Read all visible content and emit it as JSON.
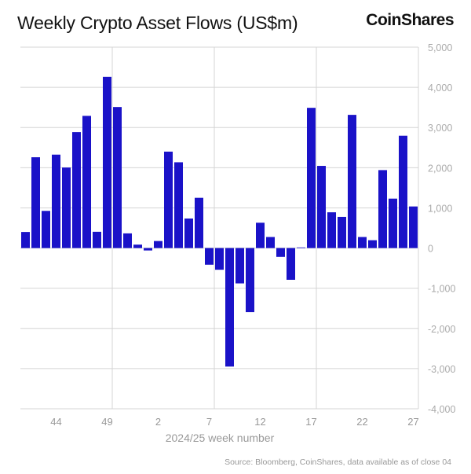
{
  "chart_data": {
    "type": "bar",
    "title": "Weekly Crypto Asset Flows (US$m)",
    "xlabel": "2024/25 week number",
    "ylabel": "",
    "ylim": [
      -4000,
      5000
    ],
    "yticks": [
      5000,
      4000,
      3000,
      2000,
      1000,
      0,
      -1000,
      -2000,
      -3000,
      -4000
    ],
    "ytick_labels": [
      "5,000",
      "4,000",
      "3,000",
      "2,000",
      "1,000",
      "0",
      "-1,000",
      "-2,000",
      "-3,000",
      "-4,000"
    ],
    "y_axis_position": "right",
    "grid": true,
    "bar_color": "#1a12c8",
    "categories": [
      "41",
      "42",
      "43",
      "44",
      "45",
      "46",
      "47",
      "48",
      "49",
      "50",
      "51",
      "52",
      "1",
      "2",
      "3",
      "4",
      "5",
      "6",
      "7",
      "8",
      "9",
      "10",
      "11",
      "12",
      "13",
      "14",
      "15",
      "16",
      "17",
      "18",
      "19",
      "20",
      "21",
      "22",
      "23",
      "24",
      "25",
      "26",
      "27"
    ],
    "xtick_labels": [
      "44",
      "49",
      "2",
      "7",
      "12",
      "17",
      "22",
      "27"
    ],
    "values": [
      400,
      2260,
      925,
      2325,
      2005,
      2885,
      3290,
      405,
      4260,
      3510,
      365,
      85,
      -60,
      175,
      2400,
      2135,
      735,
      1250,
      -415,
      -540,
      -2950,
      -880,
      -1595,
      630,
      275,
      -220,
      -790,
      15,
      3490,
      2045,
      890,
      775,
      3315,
      275,
      195,
      1940,
      1230,
      2795,
      1035
    ]
  },
  "brand": "CoinShares",
  "source": "Source: Bloomberg, CoinShares, data available as of close 04"
}
